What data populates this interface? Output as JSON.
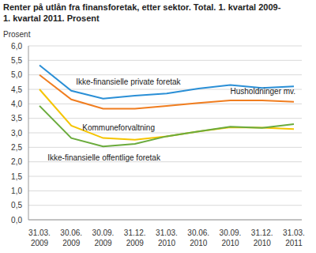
{
  "chart_data": {
    "type": "line",
    "title": "Renter på utlån fra finansforetak, etter sektor. Total. 1. kvartal 2009-1. kvartal 2011. Prosent",
    "y_label": "Prosent",
    "categories": [
      "31.03. 2009",
      "30.06. 2009",
      "30.09. 2009",
      "31.12. 2009",
      "31.03. 2010",
      "30.06. 2010",
      "30.09. 2010",
      "31.12. 2010",
      "31.03. 2011"
    ],
    "series": [
      {
        "name": "Ikke-finansielle private foretak",
        "color": "#2a8fd6",
        "values": [
          5.33,
          4.45,
          4.18,
          4.28,
          4.36,
          4.53,
          4.65,
          4.55,
          4.6
        ]
      },
      {
        "name": "Husholdninger mv.",
        "color": "#f07d1f",
        "values": [
          5.0,
          4.15,
          3.83,
          3.83,
          3.93,
          4.03,
          4.12,
          4.12,
          4.07
        ]
      },
      {
        "name": "Kommuneforvaltning",
        "color": "#f5c400",
        "values": [
          4.5,
          3.25,
          2.82,
          2.76,
          2.88,
          3.05,
          3.19,
          3.18,
          3.13
        ]
      },
      {
        "name": "Ikke-finansielle offentlige foretak",
        "color": "#6aab3c",
        "values": [
          3.93,
          2.82,
          2.53,
          2.62,
          2.88,
          3.05,
          3.21,
          3.17,
          3.3
        ]
      }
    ],
    "ylim": [
      0,
      6
    ],
    "yticks": [
      {
        "value": 0,
        "label": "0,0"
      },
      {
        "value": 0.5,
        "label": "0,5"
      },
      {
        "value": 1,
        "label": "1,0"
      },
      {
        "value": 1.5,
        "label": "1,5"
      },
      {
        "value": 2,
        "label": "2,0"
      },
      {
        "value": 2.5,
        "label": "2,5"
      },
      {
        "value": 3,
        "label": "3,0"
      },
      {
        "value": 3.5,
        "label": "3,5"
      },
      {
        "value": 4,
        "label": "4,0"
      },
      {
        "value": 4.5,
        "label": "4,5"
      },
      {
        "value": 5,
        "label": "5,0"
      },
      {
        "value": 5.5,
        "label": "5,5"
      },
      {
        "value": 6,
        "label": "6,0"
      }
    ],
    "grid": true
  }
}
